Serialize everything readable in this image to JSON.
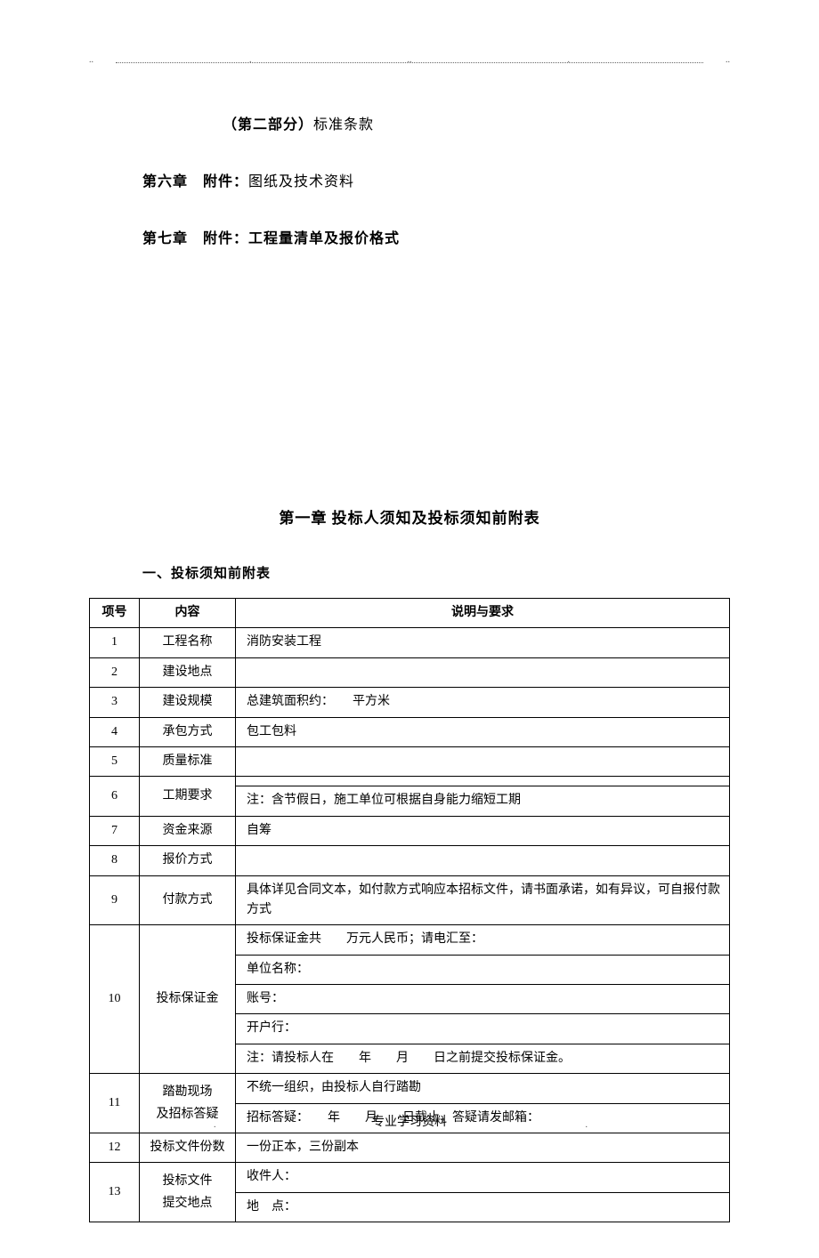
{
  "header_dots": [
    "..",
    ".",
    "..",
    ".",
    ".."
  ],
  "top_lines": {
    "part2": "（第二部分）",
    "part2_suffix": "标准条款",
    "ch6_prefix": "第六章　附件：",
    "ch6_suffix": "图纸及技术资料",
    "ch7_prefix": "第七章　附件：工程量清单及报价格式"
  },
  "chapter_title": "第一章 投标人须知及投标须知前附表",
  "section_heading": "一、投标须知前附表",
  "table": {
    "headers": [
      "项号",
      "内容",
      "说明与要求"
    ],
    "rows": [
      {
        "num": "1",
        "content": "工程名称",
        "desc": "消防安装工程"
      },
      {
        "num": "2",
        "content": "建设地点",
        "desc": ""
      },
      {
        "num": "3",
        "content": "建设规模",
        "desc": "总建筑面积约：　　平方米"
      },
      {
        "num": "4",
        "content": "承包方式",
        "desc": "包工包料"
      },
      {
        "num": "5",
        "content": "质量标准",
        "desc": ""
      },
      {
        "num": "6",
        "content": "工期要求",
        "desc_lines": [
          "",
          "注：含节假日，施工单位可根据自身能力缩短工期"
        ]
      },
      {
        "num": "7",
        "content": "资金来源",
        "desc": "自筹"
      },
      {
        "num": "8",
        "content": "报价方式",
        "desc": ""
      },
      {
        "num": "9",
        "content": "付款方式",
        "desc": "具体详见合同文本，如付款方式响应本招标文件，请书面承诺，如有异议，可自报付款方式"
      },
      {
        "num": "10",
        "content": "投标保证金",
        "desc_lines": [
          "投标保证金共　　万元人民币；请电汇至：",
          "单位名称：",
          "账号：",
          "开户行：",
          "注：请投标人在　　年　　月　　日之前提交投标保证金。"
        ]
      },
      {
        "num": "11",
        "content_lines": [
          "踏勘现场",
          "及招标答疑"
        ],
        "desc_lines": [
          "不统一组织，由投标人自行踏勘",
          "招标答疑：　　年　　月　　日截止，答疑请发邮箱："
        ]
      },
      {
        "num": "12",
        "content": "投标文件份数",
        "desc": "一份正本，三份副本"
      },
      {
        "num": "13",
        "content_lines": [
          "投标文件",
          "提交地点"
        ],
        "desc_lines": [
          "收件人：",
          "地　点："
        ]
      }
    ]
  },
  "footer": "专业学习资料"
}
